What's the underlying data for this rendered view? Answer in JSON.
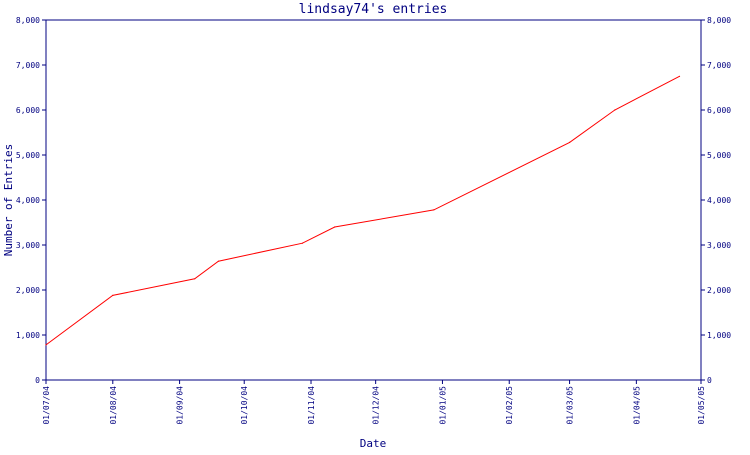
{
  "chart_data": {
    "type": "line",
    "title": "lindsay74's entries",
    "xlabel": "Date",
    "ylabel": "Number of Entries",
    "ylim": [
      0,
      8000
    ],
    "y_ticks": [
      "0",
      "1,000",
      "2,000",
      "3,000",
      "4,000",
      "5,000",
      "6,000",
      "7,000",
      "8,000"
    ],
    "x_ticks": [
      "01/07/04",
      "01/08/04",
      "01/09/04",
      "01/10/04",
      "01/11/04",
      "01/12/04",
      "01/01/05",
      "01/02/05",
      "01/03/05",
      "01/04/05",
      "01/05/05"
    ],
    "xlim": [
      "2004-07-01",
      "2005-05-01"
    ],
    "right_axis": true,
    "grid": false,
    "line_color": "#ff0000",
    "axis_color": "#000080",
    "series": [
      {
        "points": [
          {
            "x": "2004-07-01",
            "y": 780
          },
          {
            "x": "2004-08-01",
            "y": 1880
          },
          {
            "x": "2004-09-08",
            "y": 2250
          },
          {
            "x": "2004-09-19",
            "y": 2640
          },
          {
            "x": "2004-10-28",
            "y": 3040
          },
          {
            "x": "2004-11-12",
            "y": 3400
          },
          {
            "x": "2004-12-28",
            "y": 3780
          },
          {
            "x": "2005-03-01",
            "y": 5280
          },
          {
            "x": "2005-03-22",
            "y": 6000
          },
          {
            "x": "2005-04-21",
            "y": 6750
          }
        ]
      }
    ]
  }
}
